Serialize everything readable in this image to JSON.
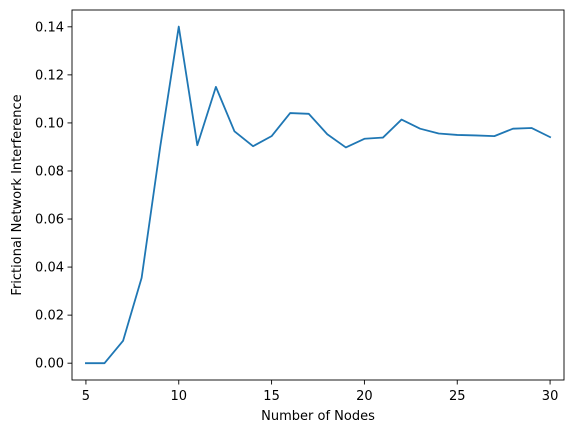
{
  "chart_data": {
    "type": "line",
    "title": "",
    "xlabel": "Number of Nodes",
    "ylabel": "Frictional Network Interference",
    "xlim": [
      4.25,
      30.75
    ],
    "ylim": [
      -0.007,
      0.147
    ],
    "x_ticks": [
      5,
      10,
      15,
      20,
      25,
      30
    ],
    "x_tick_labels": [
      "5",
      "10",
      "15",
      "20",
      "25",
      "30"
    ],
    "y_ticks": [
      0.0,
      0.02,
      0.04,
      0.06,
      0.08,
      0.1,
      0.12,
      0.14
    ],
    "y_tick_labels": [
      "0.00",
      "0.02",
      "0.04",
      "0.06",
      "0.08",
      "0.10",
      "0.12",
      "0.14"
    ],
    "grid": false,
    "series": [
      {
        "color": "#1f77b4",
        "x": [
          5,
          6,
          7,
          8,
          9,
          10,
          11,
          12,
          13,
          14,
          15,
          16,
          17,
          18,
          19,
          20,
          21,
          22,
          23,
          24,
          25,
          26,
          27,
          28,
          29,
          30
        ],
        "y": [
          0.0,
          0.0,
          0.0093,
          0.0355,
          0.09,
          0.1401,
          0.0907,
          0.115,
          0.0965,
          0.0903,
          0.0945,
          0.1041,
          0.1038,
          0.0953,
          0.0898,
          0.0934,
          0.0939,
          0.1014,
          0.0976,
          0.0956,
          0.095,
          0.0948,
          0.0945,
          0.0976,
          0.0979,
          0.0941
        ]
      }
    ]
  }
}
